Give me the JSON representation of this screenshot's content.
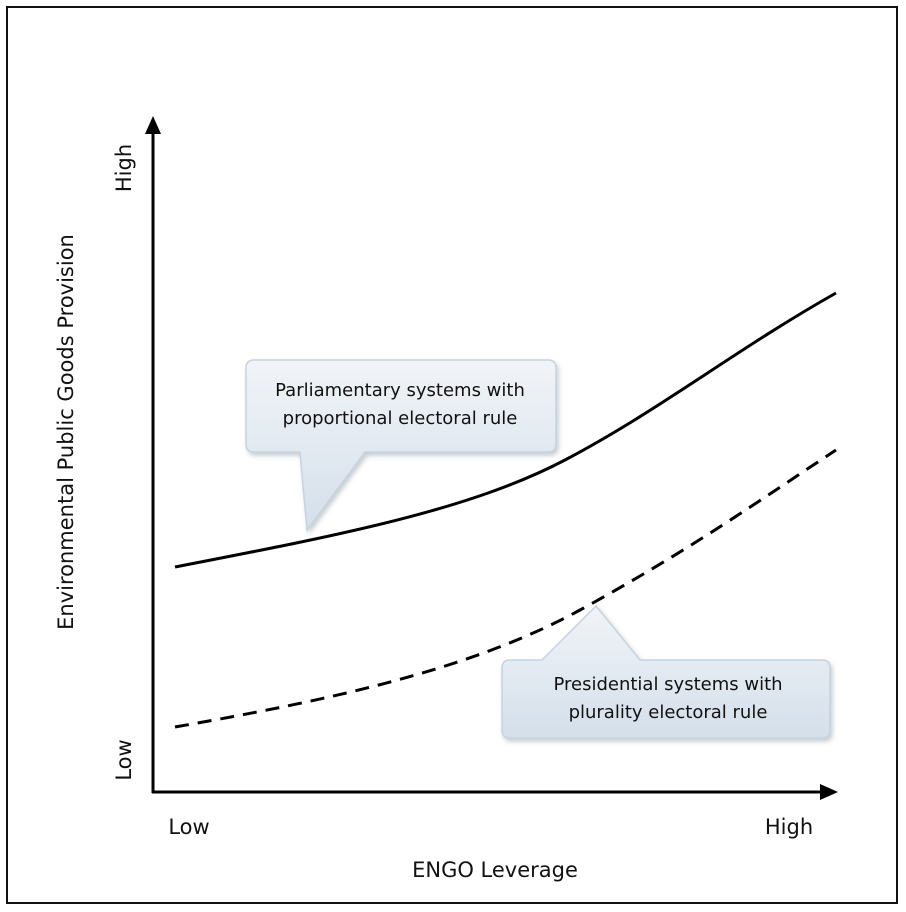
{
  "diagram": {
    "x_axis": {
      "label": "ENGO Leverage",
      "low_tick": "Low",
      "high_tick": "High"
    },
    "y_axis": {
      "label": "Environmental Public Goods Provision",
      "low_tick": "Low",
      "high_tick": "High"
    },
    "curves": [
      {
        "id": "parliamentary",
        "style": "solid",
        "callout_lines": [
          "Parliamentary systems with",
          "proportional electoral rule"
        ]
      },
      {
        "id": "presidential",
        "style": "dashed",
        "callout_lines": [
          "Presidential systems with",
          "plurality electoral rule"
        ]
      }
    ],
    "colors": {
      "line": "#000000",
      "callout_fill_top": "#f1f4f8",
      "callout_fill_bottom": "#d4dfea",
      "callout_stroke": "#c7d3de"
    }
  }
}
